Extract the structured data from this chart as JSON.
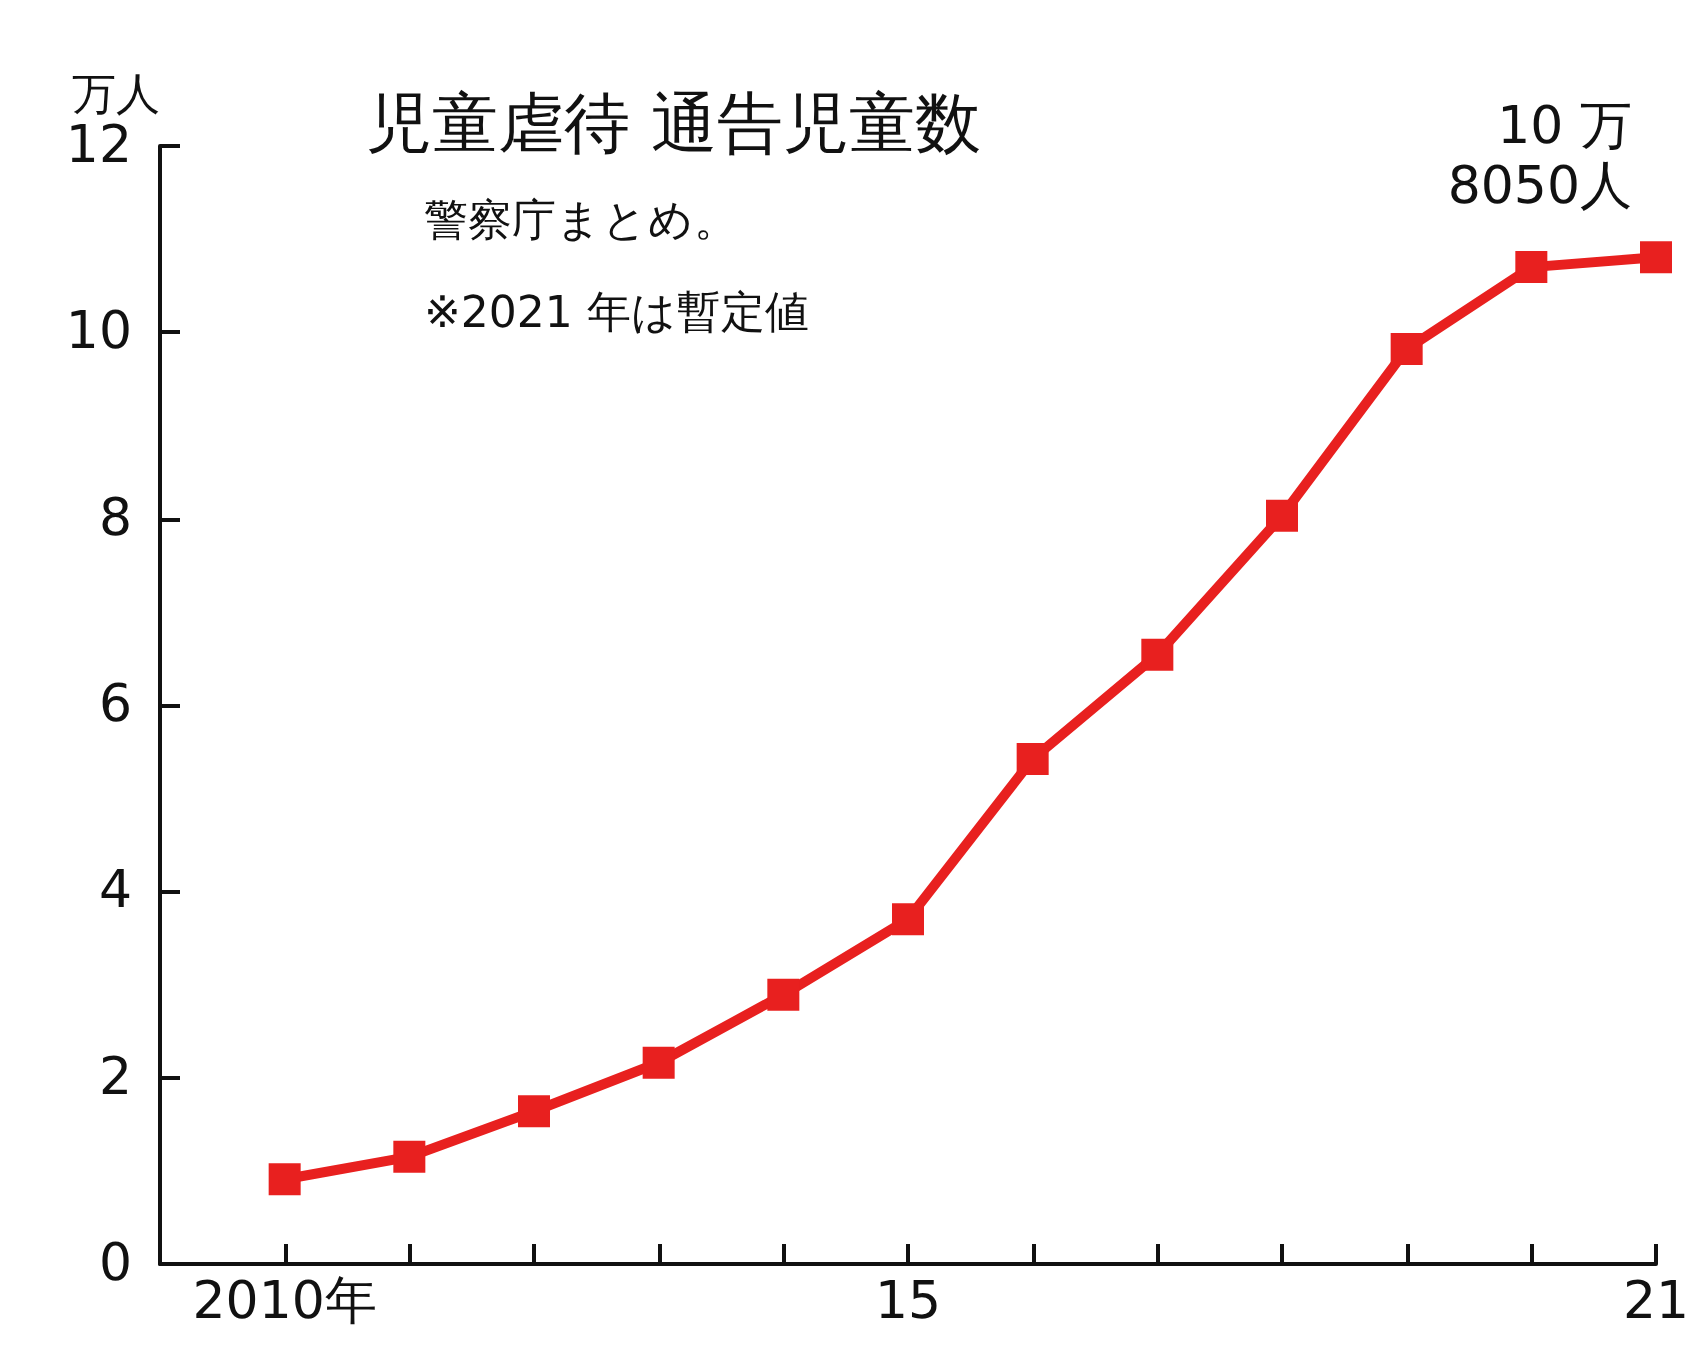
{
  "chart_data": {
    "type": "line",
    "title": "児童虐待 通告児童数",
    "ylabel": "万人",
    "annotations": [
      "警察庁まとめ。",
      "※2021 年は暫定値",
      {
        "text": "10 万\n8050人",
        "x": 2021,
        "y": 10.805
      }
    ],
    "x": [
      2010,
      2011,
      2012,
      2013,
      2014,
      2015,
      2016,
      2017,
      2018,
      2019,
      2020,
      2021
    ],
    "series": [
      {
        "color": "#e8201f",
        "values": [
          0.91,
          1.15,
          1.64,
          2.16,
          2.89,
          3.7,
          5.42,
          6.54,
          8.03,
          9.82,
          10.7,
          10.805
        ]
      }
    ],
    "xlim": [
      2009,
      2021
    ],
    "xticks": [
      {
        "value": 2010,
        "label": "2010年"
      },
      {
        "value": 2011,
        "label": null
      },
      {
        "value": 2012,
        "label": null
      },
      {
        "value": 2013,
        "label": null
      },
      {
        "value": 2014,
        "label": null
      },
      {
        "value": 2015,
        "label": "15"
      },
      {
        "value": 2016,
        "label": null
      },
      {
        "value": 2017,
        "label": null
      },
      {
        "value": 2018,
        "label": null
      },
      {
        "value": 2019,
        "label": null
      },
      {
        "value": 2020,
        "label": null
      },
      {
        "value": 2021,
        "label": "21"
      }
    ],
    "ylim": [
      0,
      12
    ],
    "yticks": [
      0,
      2,
      4,
      6,
      8,
      10,
      12
    ],
    "grid": false,
    "marker": "square",
    "line_style": "solid"
  }
}
